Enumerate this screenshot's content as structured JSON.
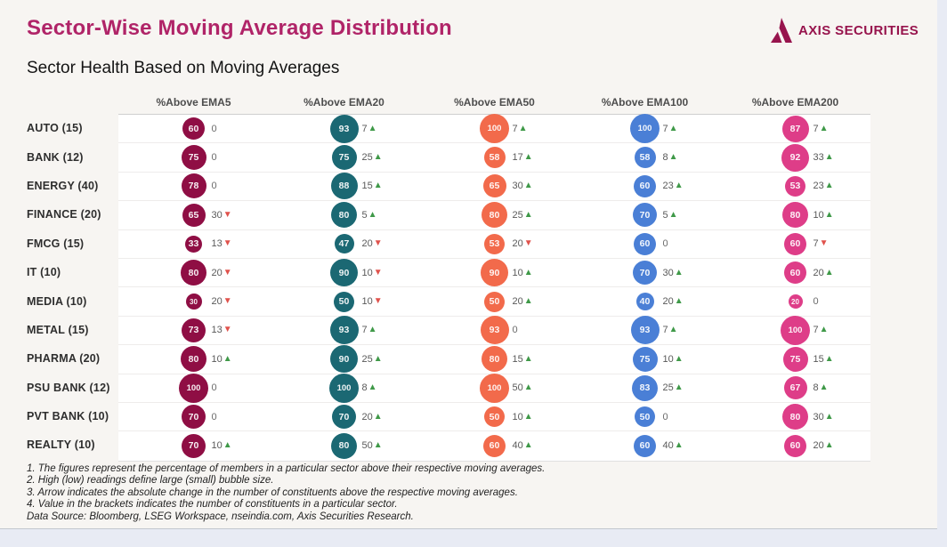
{
  "page": {
    "title": "Sector-Wise Moving Average Distribution",
    "subtitle": "Sector Health Based on Moving Averages",
    "brand": {
      "name": "AXIS SECURITIES",
      "color": "#97144d"
    }
  },
  "chart_data": {
    "type": "bubble-matrix",
    "columns": [
      "%Above EMA5",
      "%Above EMA20",
      "%Above EMA50",
      "%Above EMA100",
      "%Above EMA200"
    ],
    "column_colors": [
      "#8f0e44",
      "#1b6873",
      "#f26a4b",
      "#4a7fd6",
      "#de3d88"
    ],
    "legend_note": "bubble size proportional to value; arrow = absolute change",
    "arrow_up_color": "#3f9948",
    "arrow_down_color": "#e0524c",
    "rows": [
      {
        "sector": "AUTO (15)",
        "cells": [
          {
            "value": 60,
            "delta": 0,
            "dir": "none"
          },
          {
            "value": 93,
            "delta": 7,
            "dir": "up"
          },
          {
            "value": 100,
            "delta": 7,
            "dir": "up"
          },
          {
            "value": 100,
            "delta": 7,
            "dir": "up"
          },
          {
            "value": 87,
            "delta": 7,
            "dir": "up"
          }
        ]
      },
      {
        "sector": "BANK (12)",
        "cells": [
          {
            "value": 75,
            "delta": 0,
            "dir": "none"
          },
          {
            "value": 75,
            "delta": 25,
            "dir": "up"
          },
          {
            "value": 58,
            "delta": 17,
            "dir": "up"
          },
          {
            "value": 58,
            "delta": 8,
            "dir": "up"
          },
          {
            "value": 92,
            "delta": 33,
            "dir": "up"
          }
        ]
      },
      {
        "sector": "ENERGY (40)",
        "cells": [
          {
            "value": 78,
            "delta": 0,
            "dir": "none"
          },
          {
            "value": 88,
            "delta": 15,
            "dir": "up"
          },
          {
            "value": 65,
            "delta": 30,
            "dir": "up"
          },
          {
            "value": 60,
            "delta": 23,
            "dir": "up"
          },
          {
            "value": 53,
            "delta": 23,
            "dir": "up"
          }
        ]
      },
      {
        "sector": "FINANCE (20)",
        "cells": [
          {
            "value": 65,
            "delta": 30,
            "dir": "down"
          },
          {
            "value": 80,
            "delta": 5,
            "dir": "up"
          },
          {
            "value": 80,
            "delta": 25,
            "dir": "up"
          },
          {
            "value": 70,
            "delta": 5,
            "dir": "up"
          },
          {
            "value": 80,
            "delta": 10,
            "dir": "up"
          }
        ]
      },
      {
        "sector": "FMCG (15)",
        "cells": [
          {
            "value": 33,
            "delta": 13,
            "dir": "down"
          },
          {
            "value": 47,
            "delta": 20,
            "dir": "down"
          },
          {
            "value": 53,
            "delta": 20,
            "dir": "down"
          },
          {
            "value": 60,
            "delta": 0,
            "dir": "none"
          },
          {
            "value": 60,
            "delta": 7,
            "dir": "down"
          }
        ]
      },
      {
        "sector": "IT (10)",
        "cells": [
          {
            "value": 80,
            "delta": 20,
            "dir": "down"
          },
          {
            "value": 90,
            "delta": 10,
            "dir": "down"
          },
          {
            "value": 90,
            "delta": 10,
            "dir": "up"
          },
          {
            "value": 70,
            "delta": 30,
            "dir": "up"
          },
          {
            "value": 60,
            "delta": 20,
            "dir": "up"
          }
        ]
      },
      {
        "sector": "MEDIA (10)",
        "cells": [
          {
            "value": 30,
            "delta": 20,
            "dir": "down"
          },
          {
            "value": 50,
            "delta": 10,
            "dir": "down"
          },
          {
            "value": 50,
            "delta": 20,
            "dir": "up"
          },
          {
            "value": 40,
            "delta": 20,
            "dir": "up"
          },
          {
            "value": 20,
            "delta": 0,
            "dir": "none"
          }
        ]
      },
      {
        "sector": "METAL (15)",
        "cells": [
          {
            "value": 73,
            "delta": 13,
            "dir": "down"
          },
          {
            "value": 93,
            "delta": 7,
            "dir": "up"
          },
          {
            "value": 93,
            "delta": 0,
            "dir": "none"
          },
          {
            "value": 93,
            "delta": 7,
            "dir": "up"
          },
          {
            "value": 100,
            "delta": 7,
            "dir": "up"
          }
        ]
      },
      {
        "sector": "PHARMA (20)",
        "cells": [
          {
            "value": 80,
            "delta": 10,
            "dir": "up"
          },
          {
            "value": 90,
            "delta": 25,
            "dir": "up"
          },
          {
            "value": 80,
            "delta": 15,
            "dir": "up"
          },
          {
            "value": 75,
            "delta": 10,
            "dir": "up"
          },
          {
            "value": 75,
            "delta": 15,
            "dir": "up"
          }
        ]
      },
      {
        "sector": "PSU BANK (12)",
        "cells": [
          {
            "value": 100,
            "delta": 0,
            "dir": "none"
          },
          {
            "value": 100,
            "delta": 8,
            "dir": "up"
          },
          {
            "value": 100,
            "delta": 50,
            "dir": "up"
          },
          {
            "value": 83,
            "delta": 25,
            "dir": "up"
          },
          {
            "value": 67,
            "delta": 8,
            "dir": "up"
          }
        ]
      },
      {
        "sector": "PVT BANK (10)",
        "cells": [
          {
            "value": 70,
            "delta": 0,
            "dir": "none"
          },
          {
            "value": 70,
            "delta": 20,
            "dir": "up"
          },
          {
            "value": 50,
            "delta": 10,
            "dir": "up"
          },
          {
            "value": 50,
            "delta": 0,
            "dir": "none"
          },
          {
            "value": 80,
            "delta": 30,
            "dir": "up"
          }
        ]
      },
      {
        "sector": "REALTY (10)",
        "cells": [
          {
            "value": 70,
            "delta": 10,
            "dir": "up"
          },
          {
            "value": 80,
            "delta": 50,
            "dir": "up"
          },
          {
            "value": 60,
            "delta": 40,
            "dir": "up"
          },
          {
            "value": 60,
            "delta": 40,
            "dir": "up"
          },
          {
            "value": 60,
            "delta": 20,
            "dir": "up"
          }
        ]
      }
    ]
  },
  "footnotes": [
    "1. The figures represent the percentage of members in a particular sector above their respective moving averages.",
    "2. High (low) readings define large (small) bubble size.",
    "3. Arrow indicates the absolute change in the number of constituents above the respective moving averages.",
    "4. Value in the brackets indicates the number of constituents in a particular sector."
  ],
  "data_source": "Data Source: Bloomberg, LSEG Workspace, nseindia.com, Axis Securities Research."
}
